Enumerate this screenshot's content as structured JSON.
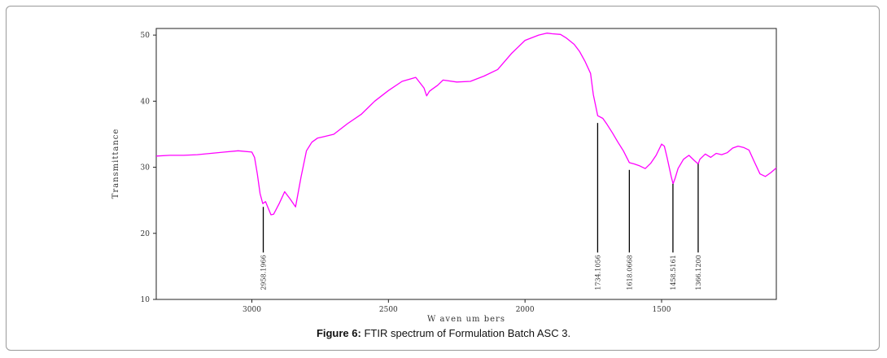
{
  "caption": {
    "label": "Figure 6:",
    "text": "FTIR spectrum of Formulation Batch ASC 3."
  },
  "chart_data": {
    "type": "line",
    "xlabel": "W aven um bers",
    "ylabel": "Transmittance",
    "xlim": [
      3350,
      1080
    ],
    "ylim": [
      10,
      51
    ],
    "x_reversed": true,
    "x_ticks": [
      3000,
      2500,
      2000,
      1500
    ],
    "x_tick_labels": [
      "3000",
      "2500",
      "2000",
      "1500"
    ],
    "y_ticks": [
      10,
      20,
      30,
      40,
      50
    ],
    "y_tick_labels": [
      "10",
      "20",
      "30",
      "40",
      "50"
    ],
    "grid": false,
    "line_color": "#ff00ff",
    "series": [
      {
        "x": [
          3350,
          3300,
          3250,
          3200,
          3150,
          3100,
          3050,
          3000,
          2990,
          2980,
          2970,
          2960,
          2950,
          2940,
          2930,
          2920,
          2900,
          2880,
          2860,
          2840,
          2820,
          2800,
          2780,
          2760,
          2740,
          2700,
          2650,
          2600,
          2550,
          2500,
          2450,
          2400,
          2370,
          2360,
          2350,
          2340,
          2320,
          2300,
          2250,
          2200,
          2150,
          2100,
          2050,
          2000,
          1950,
          1920,
          1900,
          1870,
          1850,
          1820,
          1800,
          1780,
          1760,
          1750,
          1734,
          1715,
          1700,
          1680,
          1660,
          1640,
          1618,
          1600,
          1580,
          1560,
          1540,
          1520,
          1500,
          1490,
          1480,
          1465,
          1458,
          1450,
          1440,
          1420,
          1400,
          1380,
          1366,
          1360,
          1340,
          1320,
          1300,
          1280,
          1260,
          1240,
          1220,
          1200,
          1180,
          1160,
          1140,
          1120,
          1100,
          1080
        ],
        "y": [
          31.7,
          31.8,
          31.8,
          31.9,
          32.1,
          32.3,
          32.5,
          32.3,
          31.5,
          29.0,
          26.0,
          24.5,
          24.8,
          23.8,
          22.8,
          22.9,
          24.5,
          26.3,
          25.2,
          24.0,
          28.5,
          32.5,
          33.8,
          34.4,
          34.6,
          35.0,
          36.6,
          38.0,
          40.0,
          41.6,
          43.0,
          43.6,
          42.0,
          40.8,
          41.5,
          41.8,
          42.4,
          43.2,
          42.9,
          43.0,
          43.8,
          44.8,
          47.2,
          49.2,
          50.0,
          50.3,
          50.2,
          50.1,
          49.6,
          48.6,
          47.5,
          46.0,
          44.2,
          41.0,
          37.8,
          37.4,
          36.5,
          35.2,
          33.8,
          32.5,
          30.7,
          30.5,
          30.2,
          29.8,
          30.6,
          31.8,
          33.5,
          33.2,
          31.5,
          28.6,
          27.5,
          28.4,
          29.8,
          31.2,
          31.8,
          31.0,
          30.5,
          31.2,
          32.0,
          31.5,
          32.1,
          31.9,
          32.2,
          32.9,
          33.2,
          33.0,
          32.6,
          30.8,
          29.0,
          28.6,
          29.2,
          29.9
        ]
      }
    ],
    "annotations": [
      {
        "x": 2958.1966,
        "label": "2958.1966",
        "line_top_y": 24.0,
        "line_bottom_y": 17.1
      },
      {
        "x": 1734.1056,
        "label": "1734.1056",
        "line_top_y": 36.7,
        "line_bottom_y": 17.1
      },
      {
        "x": 1618.0668,
        "label": "1618.0668",
        "line_top_y": 29.6,
        "line_bottom_y": 17.1
      },
      {
        "x": 1458.5161,
        "label": "1458.5161",
        "line_top_y": 27.5,
        "line_bottom_y": 17.1
      },
      {
        "x": 1366.12,
        "label": "1366.1200",
        "line_top_y": 30.5,
        "line_bottom_y": 17.1
      }
    ]
  }
}
